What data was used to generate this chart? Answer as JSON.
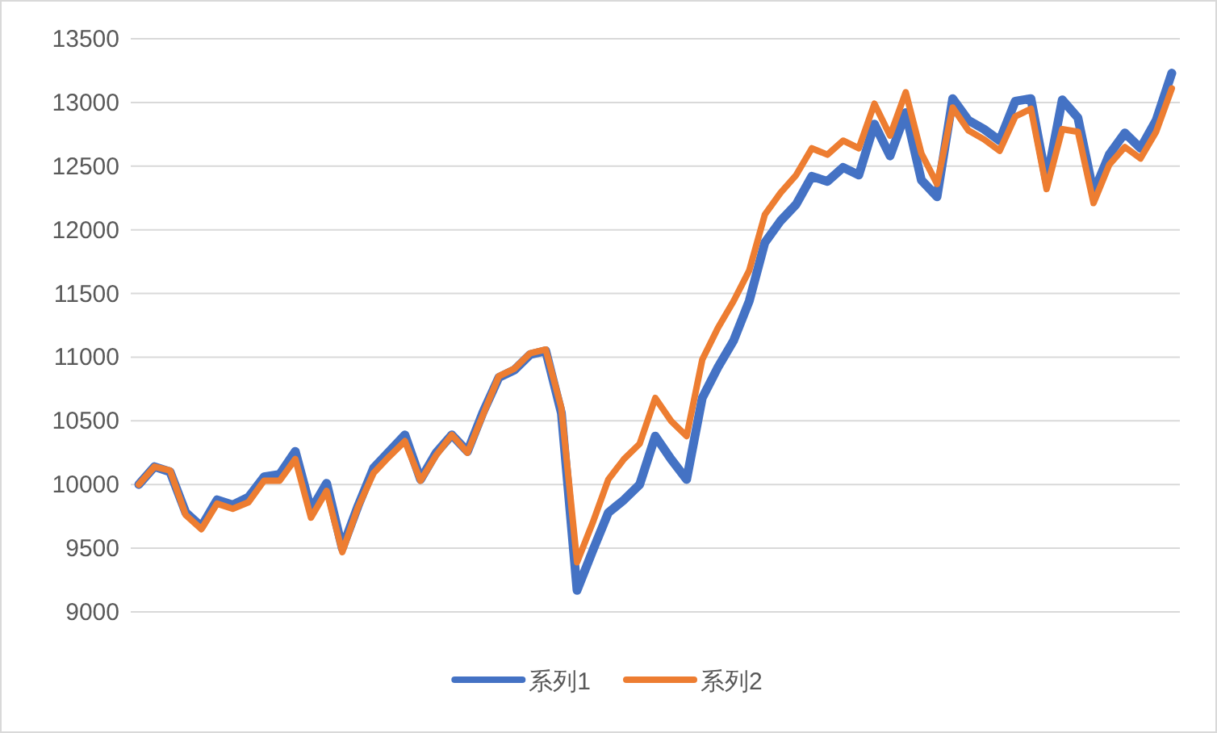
{
  "chart_data": {
    "type": "line",
    "categories": [
      null,
      null,
      null,
      null,
      null,
      null,
      null,
      null,
      null,
      null,
      null,
      null,
      null,
      null,
      null,
      null,
      null,
      null,
      null,
      null,
      null,
      null,
      null,
      null,
      null,
      null,
      null,
      null,
      null,
      null,
      null,
      null,
      null,
      null,
      null,
      null,
      null,
      null,
      null,
      null,
      null,
      null,
      null,
      null,
      null,
      null,
      null,
      null,
      null,
      null,
      null,
      null,
      null,
      null,
      null,
      null,
      null,
      null,
      null,
      null,
      null,
      null,
      null,
      null,
      null,
      null,
      null
    ],
    "series": [
      {
        "name": "系列1",
        "color": "#4472c4",
        "values": [
          10000,
          10140,
          10100,
          9780,
          9670,
          9880,
          9840,
          9900,
          10060,
          10080,
          10260,
          9800,
          10010,
          9500,
          9830,
          10130,
          10260,
          10390,
          10040,
          10250,
          10390,
          10260,
          10570,
          10840,
          10900,
          11020,
          11050,
          10560,
          9170,
          9480,
          9780,
          9880,
          10000,
          10380,
          10200,
          10040,
          10680,
          10920,
          11130,
          11440,
          11900,
          12070,
          12200,
          12420,
          12380,
          12490,
          12430,
          12830,
          12580,
          12920,
          12390,
          12260,
          13030,
          12860,
          12790,
          12700,
          13010,
          13030,
          12380,
          13020,
          12880,
          12290,
          12590,
          12760,
          12640,
          12860,
          13230
        ]
      },
      {
        "name": "系列2",
        "color": "#ed7d31",
        "values": [
          10000,
          10140,
          10110,
          9760,
          9650,
          9850,
          9810,
          9860,
          10030,
          10030,
          10200,
          9740,
          9950,
          9470,
          9820,
          10090,
          10220,
          10340,
          10030,
          10230,
          10390,
          10250,
          10550,
          10850,
          10910,
          11030,
          11060,
          10600,
          9390,
          9700,
          10040,
          10200,
          10320,
          10680,
          10500,
          10380,
          10980,
          11230,
          11440,
          11680,
          12120,
          12290,
          12430,
          12640,
          12590,
          12700,
          12640,
          12990,
          12740,
          13080,
          12600,
          12360,
          12960,
          12780,
          12710,
          12620,
          12890,
          12950,
          12320,
          12790,
          12770,
          12210,
          12510,
          12650,
          12560,
          12770,
          13110
        ]
      }
    ],
    "ylim": [
      9000,
      13500
    ],
    "yticks": [
      9000,
      9500,
      10000,
      10500,
      11000,
      11500,
      12000,
      12500,
      13000,
      13500
    ],
    "grid": "y",
    "legend": "bottom",
    "marker": "none",
    "line_style": "solid",
    "tick_labels": "y"
  }
}
